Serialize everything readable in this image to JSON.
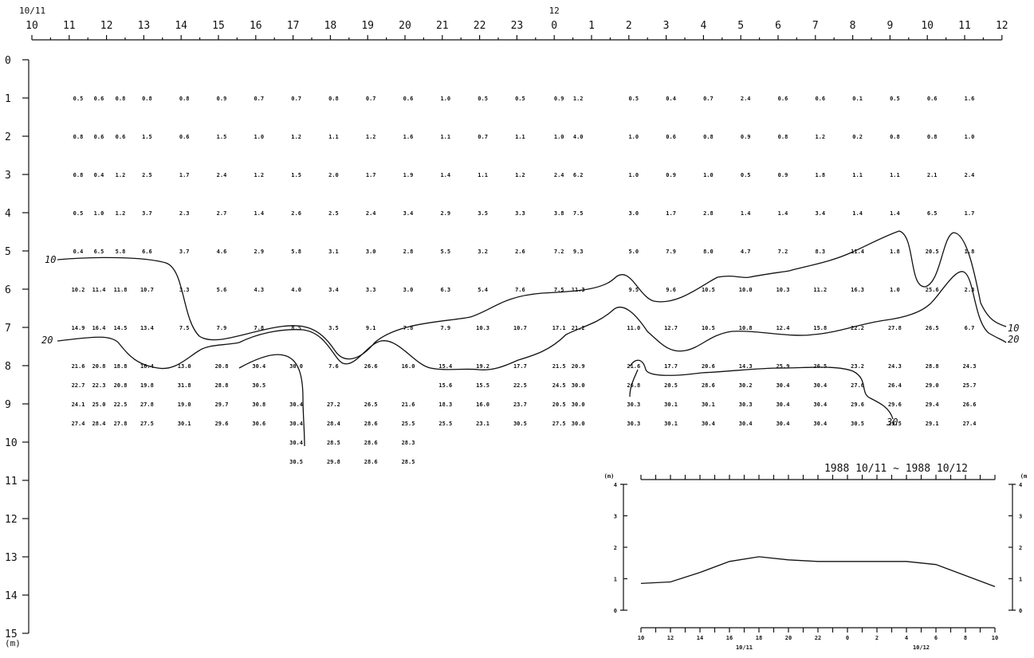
{
  "chart_data": [
    {
      "type": "heatmap",
      "description_kind": "depth-time section with isotherms",
      "top_axis": {
        "start_date": "10/11",
        "mid_date": "12",
        "hour_labels": [
          "10",
          "11",
          "12",
          "13",
          "14",
          "15",
          "16",
          "17",
          "18",
          "19",
          "20",
          "21",
          "22",
          "23",
          "0",
          "1",
          "2",
          "3",
          "4",
          "5",
          "6",
          "7",
          "8",
          "9",
          "10",
          "11",
          "12"
        ]
      },
      "left_axis": {
        "depth_labels": [
          "0",
          "1",
          "2",
          "3",
          "4",
          "5",
          "6",
          "7",
          "8",
          "9",
          "10",
          "11",
          "12",
          "13",
          "14",
          "15"
        ],
        "unit": "(m)"
      },
      "columns": [
        "10h",
        "11h",
        "12h",
        "13h",
        "14h",
        "15h",
        "16h",
        "17h",
        "18h",
        "19h",
        "20h",
        "21h",
        "22h",
        "23h",
        "0h",
        "1h",
        "2h",
        "3h",
        "4h",
        "5h",
        "6h",
        "7h",
        "8h",
        "9h",
        "10h",
        "11h"
      ],
      "rows": [
        {
          "depth": "1",
          "values": [
            "0.5",
            "0.6",
            "0.8",
            "0.8",
            "0.8",
            "0.9",
            "0.7",
            "0.7",
            "0.8",
            "0.7",
            "0.6",
            "1.0",
            "0.5",
            "0.5",
            "0.9",
            "1.2",
            "0.5",
            "0.4",
            "0.7",
            "2.4",
            "0.6",
            "0.6",
            "0.1",
            "0.5",
            "0.6",
            "1.6"
          ]
        },
        {
          "depth": "2",
          "values": [
            "0.8",
            "0.6",
            "0.6",
            "1.5",
            "0.6",
            "1.5",
            "1.0",
            "1.2",
            "1.1",
            "1.2",
            "1.6",
            "1.1",
            "0.7",
            "1.1",
            "1.0",
            "4.0",
            "1.0",
            "0.6",
            "0.8",
            "0.9",
            "0.8",
            "1.2",
            "0.2",
            "0.8",
            "0.8",
            "1.0"
          ]
        },
        {
          "depth": "3",
          "values": [
            "0.8",
            "0.4",
            "1.2",
            "2.5",
            "1.7",
            "2.4",
            "1.2",
            "1.5",
            "2.0",
            "1.7",
            "1.9",
            "1.4",
            "1.1",
            "1.2",
            "2.4",
            "6.2",
            "1.0",
            "0.9",
            "1.0",
            "0.5",
            "0.9",
            "1.8",
            "1.1",
            "1.1",
            "2.1",
            "2.4"
          ]
        },
        {
          "depth": "4",
          "values": [
            "0.5",
            "1.0",
            "1.2",
            "3.7",
            "2.3",
            "2.7",
            "1.4",
            "2.6",
            "2.5",
            "2.4",
            "3.4",
            "2.9",
            "3.5",
            "3.3",
            "3.8",
            "7.5",
            "3.0",
            "1.7",
            "2.8",
            "1.4",
            "1.4",
            "3.4",
            "1.4",
            "1.4",
            "6.5",
            "1.7"
          ]
        },
        {
          "depth": "5",
          "values": [
            "0.4",
            "6.5",
            "5.8",
            "6.6",
            "3.7",
            "4.6",
            "2.9",
            "5.8",
            "3.1",
            "3.0",
            "2.8",
            "5.5",
            "3.2",
            "2.6",
            "7.2",
            "9.3",
            "5.0",
            "7.9",
            "8.0",
            "4.7",
            "7.2",
            "8.3",
            "11.4",
            "1.8",
            "20.5",
            "1.8"
          ]
        },
        {
          "depth": "6",
          "values": [
            "10.2",
            "11.4",
            "11.8",
            "10.7",
            "3.3",
            "5.6",
            "4.3",
            "4.0",
            "3.4",
            "3.3",
            "3.0",
            "6.3",
            "5.4",
            "7.6",
            "7.5",
            "11.3",
            "9.5",
            "9.6",
            "10.5",
            "10.0",
            "10.3",
            "11.2",
            "16.3",
            "1.0",
            "25.6",
            "2.3"
          ]
        },
        {
          "depth": "7",
          "values": [
            "14.9",
            "16.4",
            "14.5",
            "13.4",
            "7.5",
            "7.9",
            "7.8",
            "8.5",
            "3.5",
            "9.1",
            "7.8",
            "7.9",
            "10.3",
            "10.7",
            "17.1",
            "21.2",
            "11.0",
            "12.7",
            "10.5",
            "10.8",
            "12.4",
            "15.8",
            "22.2",
            "27.8",
            "26.5",
            "6.7"
          ]
        },
        {
          "depth": "8",
          "values": [
            "21.6",
            "20.8",
            "18.8",
            "16.4",
            "13.0",
            "20.8",
            "30.4",
            "30.0",
            "7.6",
            "26.6",
            "16.0",
            "15.4",
            "19.2",
            "17.7",
            "21.5",
            "20.9",
            "21.6",
            "17.7",
            "20.6",
            "14.3",
            "25.9",
            "26.5",
            "23.2",
            "24.3",
            "28.8",
            "24.3"
          ]
        },
        {
          "depth": "8.5",
          "values": [
            "22.7",
            "22.3",
            "20.8",
            "19.8",
            "31.8",
            "28.8",
            "30.5",
            "",
            "",
            "",
            "",
            "15.6",
            "15.5",
            "22.5",
            "24.5",
            "30.0",
            "26.8",
            "20.5",
            "28.6",
            "30.2",
            "30.4",
            "30.4",
            "27.6",
            "26.4",
            "29.0",
            "25.7"
          ]
        },
        {
          "depth": "9",
          "values": [
            "24.1",
            "25.0",
            "22.5",
            "27.8",
            "19.0",
            "29.7",
            "30.8",
            "30.4",
            "27.2",
            "26.5",
            "21.6",
            "18.3",
            "16.0",
            "23.7",
            "20.5",
            "30.0",
            "30.3",
            "30.1",
            "30.1",
            "30.3",
            "30.4",
            "30.4",
            "29.6",
            "29.6",
            "29.4",
            "26.6"
          ]
        },
        {
          "depth": "9.5",
          "values": [
            "27.4",
            "28.4",
            "27.8",
            "27.5",
            "30.1",
            "29.6",
            "30.6",
            "30.4",
            "28.4",
            "28.6",
            "25.5",
            "25.5",
            "23.1",
            "30.5",
            "27.5",
            "30.0",
            "30.3",
            "30.1",
            "30.4",
            "30.4",
            "30.4",
            "30.4",
            "30.5",
            "29.5",
            "29.1",
            "27.4"
          ]
        },
        {
          "depth": "10",
          "values": [
            "",
            "",
            "",
            "",
            "",
            "",
            "",
            "30.4",
            "28.5",
            "28.6",
            "28.3",
            "",
            "",
            "",
            "",
            "",
            "",
            "",
            "",
            "",
            "",
            "",
            "",
            "",
            "",
            ""
          ]
        },
        {
          "depth": "10.5",
          "values": [
            "",
            "",
            "",
            "",
            "",
            "",
            "",
            "30.5",
            "29.8",
            "28.6",
            "28.5",
            "",
            "",
            "",
            "",
            "",
            "",
            "",
            "",
            "",
            "",
            "",
            "",
            "",
            "",
            ""
          ]
        }
      ],
      "contour_labels": [
        "10",
        "20",
        "10",
        "20",
        "30"
      ]
    },
    {
      "type": "line",
      "title": "1988 10/11 ~ 1988 10/12",
      "y_unit_left": "(m)",
      "y_unit_right": "(m",
      "y_ticks": [
        "4",
        "3",
        "2",
        "1",
        "0"
      ],
      "ylim": [
        0,
        4
      ],
      "x_tick_labels": [
        "10",
        "12",
        "14",
        "16",
        "18",
        "20",
        "22",
        "0",
        "2",
        "4",
        "6",
        "8",
        "10"
      ],
      "x_date_labels": [
        "10/11",
        "10/12"
      ],
      "x": [
        10,
        12,
        14,
        16,
        18,
        20,
        22,
        24,
        26,
        28,
        30,
        32,
        34
      ],
      "values": [
        0.85,
        0.9,
        1.2,
        1.55,
        1.7,
        1.6,
        1.55,
        1.55,
        1.55,
        1.55,
        1.45,
        1.1,
        0.75
      ]
    }
  ]
}
